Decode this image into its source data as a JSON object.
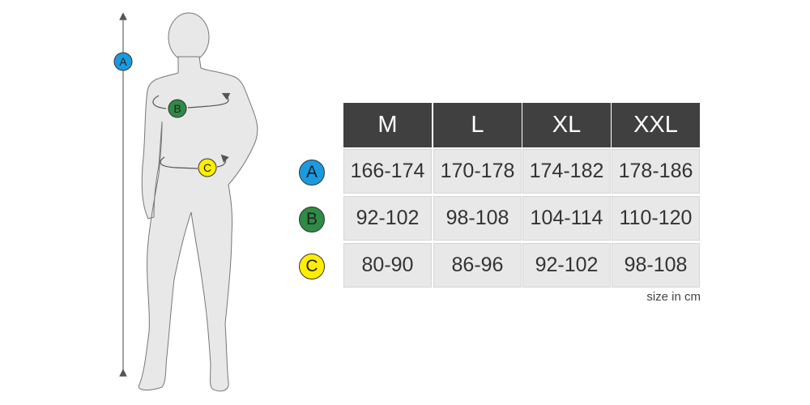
{
  "sizes": [
    "M",
    "L",
    "XL",
    "XXL"
  ],
  "rows": [
    {
      "label": "A",
      "color": "#1a9be0",
      "values": [
        "166-174",
        "170-178",
        "174-182",
        "178-186"
      ]
    },
    {
      "label": "B",
      "color": "#2e8b45",
      "values": [
        "92-102",
        "98-108",
        "104-114",
        "110-120"
      ]
    },
    {
      "label": "C",
      "color": "#ffee00",
      "values": [
        "80-90",
        "86-96",
        "92-102",
        "98-108"
      ]
    }
  ],
  "figure": {
    "markers": [
      "A",
      "B",
      "C"
    ]
  },
  "unit_note": "size in cm",
  "colors": {
    "header_bg": "#404040",
    "cell_bg": "#e8e8e8",
    "figure_fill": "#e8e8e8"
  }
}
